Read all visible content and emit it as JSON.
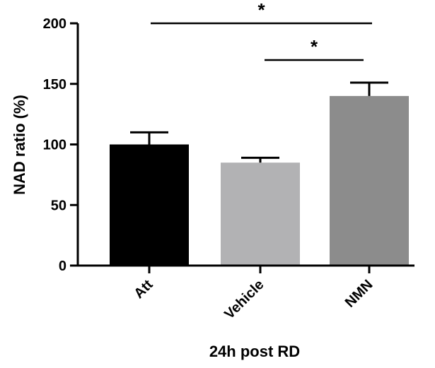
{
  "chart_data": {
    "type": "bar",
    "categories": [
      "Att",
      "Vehicle",
      "NMN"
    ],
    "values": [
      100,
      85,
      140
    ],
    "errors": [
      10,
      4,
      11
    ],
    "colors": [
      "#000000",
      "#b2b2b4",
      "#8c8c8c"
    ],
    "xlabel": "24h post RD",
    "ylabel": "NAD ratio (%)",
    "ylim": [
      0,
      200
    ],
    "yticks": [
      0,
      50,
      100,
      150,
      200
    ],
    "grid": false,
    "significance": [
      {
        "from": "Att",
        "to": "NMN",
        "label": "*"
      },
      {
        "from": "Vehicle",
        "to": "NMN",
        "label": "*"
      }
    ]
  }
}
